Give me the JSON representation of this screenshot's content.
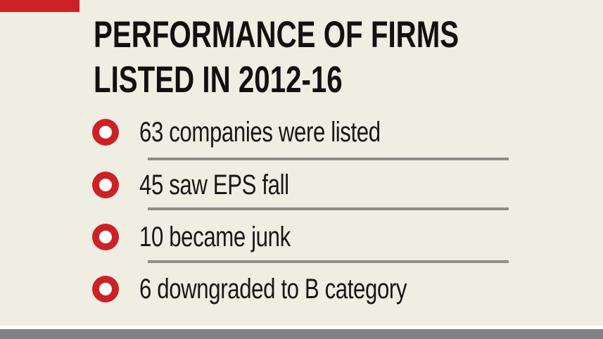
{
  "infographic": {
    "title_line1": "PERFORMANCE OF FIRMS",
    "title_line2": "LISTED IN 2012-16",
    "items": [
      {
        "label": "63 companies were listed"
      },
      {
        "label": "45 saw EPS fall"
      },
      {
        "label": "10 became junk"
      },
      {
        "label": "6 downgraded to B category"
      }
    ],
    "bullet_icon": "ring-bullet-icon"
  },
  "chart_data": {
    "type": "table",
    "title": "PERFORMANCE OF FIRMS LISTED IN 2012-16",
    "rows": [
      {
        "value": 63,
        "label": "companies were listed"
      },
      {
        "value": 45,
        "label": "saw EPS fall"
      },
      {
        "value": 10,
        "label": "became junk"
      },
      {
        "value": 6,
        "label": "downgraded to B category"
      }
    ],
    "legend": false,
    "grid": false
  },
  "colors": {
    "background": "#f0ede3",
    "accent_red": "#cd2127",
    "text": "#171717",
    "separator": "#8f8f88",
    "footer_bar": "#818186",
    "footer_strip": "#ffffff"
  }
}
